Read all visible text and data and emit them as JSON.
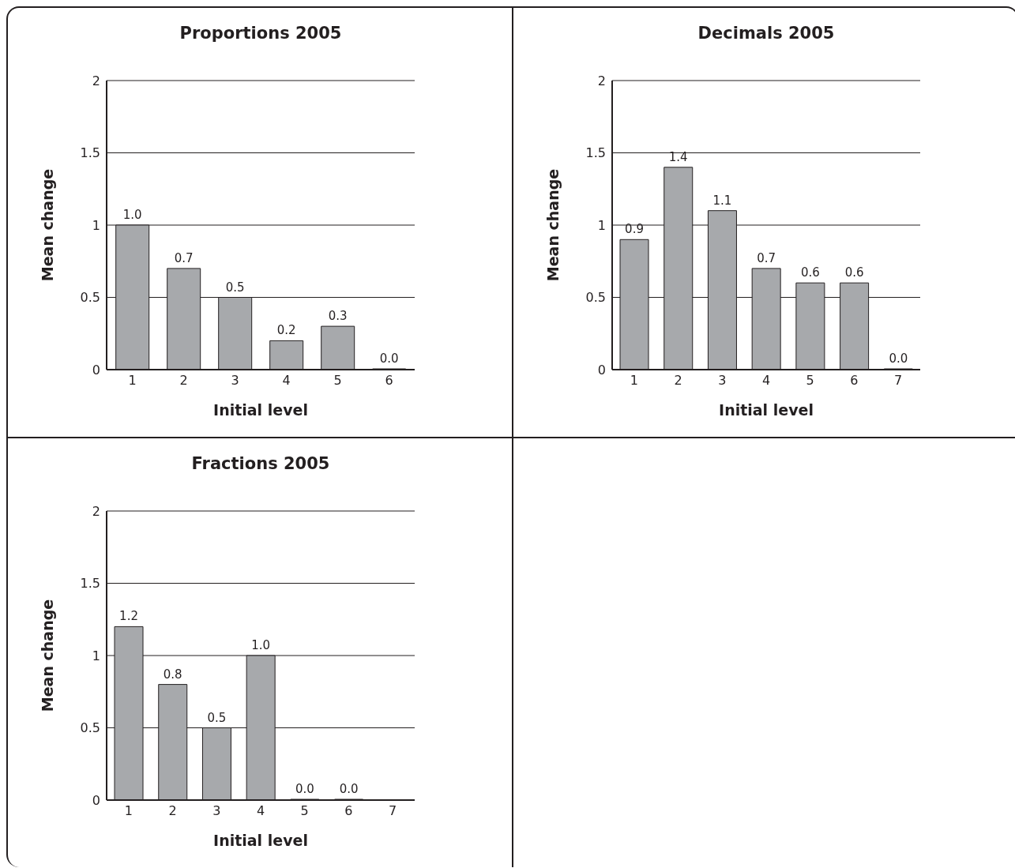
{
  "chart_data": [
    {
      "type": "bar",
      "title": "Proportions 2005",
      "xlabel": "Initial level",
      "ylabel": "Mean change",
      "categories": [
        "1",
        "2",
        "3",
        "4",
        "5",
        "6"
      ],
      "values": [
        1.0,
        0.7,
        0.5,
        0.2,
        0.3,
        0.0
      ],
      "value_labels": [
        "1.0",
        "0.7",
        "0.5",
        "0.2",
        "0.3",
        "0.0"
      ],
      "color": "#a7a9ac",
      "ylim": [
        0,
        2
      ],
      "yticks": [
        0,
        0.5,
        1,
        1.5,
        2
      ],
      "grid": "y",
      "legend": false
    },
    {
      "type": "bar",
      "title": "Decimals 2005",
      "xlabel": "Initial level",
      "ylabel": "Mean change",
      "categories": [
        "1",
        "2",
        "3",
        "4",
        "5",
        "6",
        "7"
      ],
      "values": [
        0.9,
        1.4,
        1.1,
        0.7,
        0.6,
        0.6,
        0.0
      ],
      "value_labels": [
        "0.9",
        "1.4",
        "1.1",
        "0.7",
        "0.6",
        "0.6",
        "0.0"
      ],
      "color": "#a7a9ac",
      "ylim": [
        0,
        2
      ],
      "yticks": [
        0,
        0.5,
        1,
        1.5,
        2
      ],
      "grid": "y",
      "legend": false
    },
    {
      "type": "bar",
      "title": "Fractions 2005",
      "xlabel": "Initial level",
      "ylabel": "Mean change",
      "categories": [
        "1",
        "2",
        "3",
        "4",
        "5",
        "6",
        "7"
      ],
      "values": [
        1.2,
        0.8,
        0.5,
        1.0,
        0.0,
        0.0,
        null
      ],
      "value_labels": [
        "1.2",
        "0.8",
        "0.5",
        "1.0",
        "0.0",
        "0.0",
        null
      ],
      "color": "#a7a9ac",
      "ylim": [
        0,
        2
      ],
      "yticks": [
        0,
        0.5,
        1,
        1.5,
        2
      ],
      "grid": "y",
      "legend": false
    }
  ]
}
